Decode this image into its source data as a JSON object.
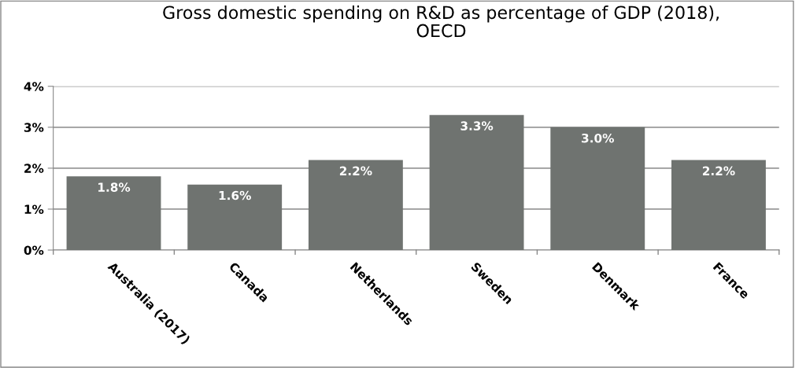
{
  "chart_data": {
    "type": "bar",
    "title": "Gross domestic spending on R&D as percentage of GDP (2018),\nOECD",
    "categories": [
      "Australia (2017)",
      "Canada",
      "Netherlands",
      "Sweden",
      "Denmark",
      "France"
    ],
    "values": [
      1.8,
      1.6,
      2.2,
      3.3,
      3.0,
      2.2
    ],
    "value_labels": [
      "1.8%",
      "1.6%",
      "2.2%",
      "3.3%",
      "3.0%",
      "2.2%"
    ],
    "color": "#6f7370",
    "ylim": [
      0,
      4
    ],
    "yticks": [
      {
        "value": 0,
        "label": "0%"
      },
      {
        "value": 1,
        "label": "1%"
      },
      {
        "value": 2,
        "label": "2%"
      },
      {
        "value": 3,
        "label": "3%"
      },
      {
        "value": 4,
        "label": "4%"
      }
    ],
    "grid": "y",
    "legend": false
  }
}
